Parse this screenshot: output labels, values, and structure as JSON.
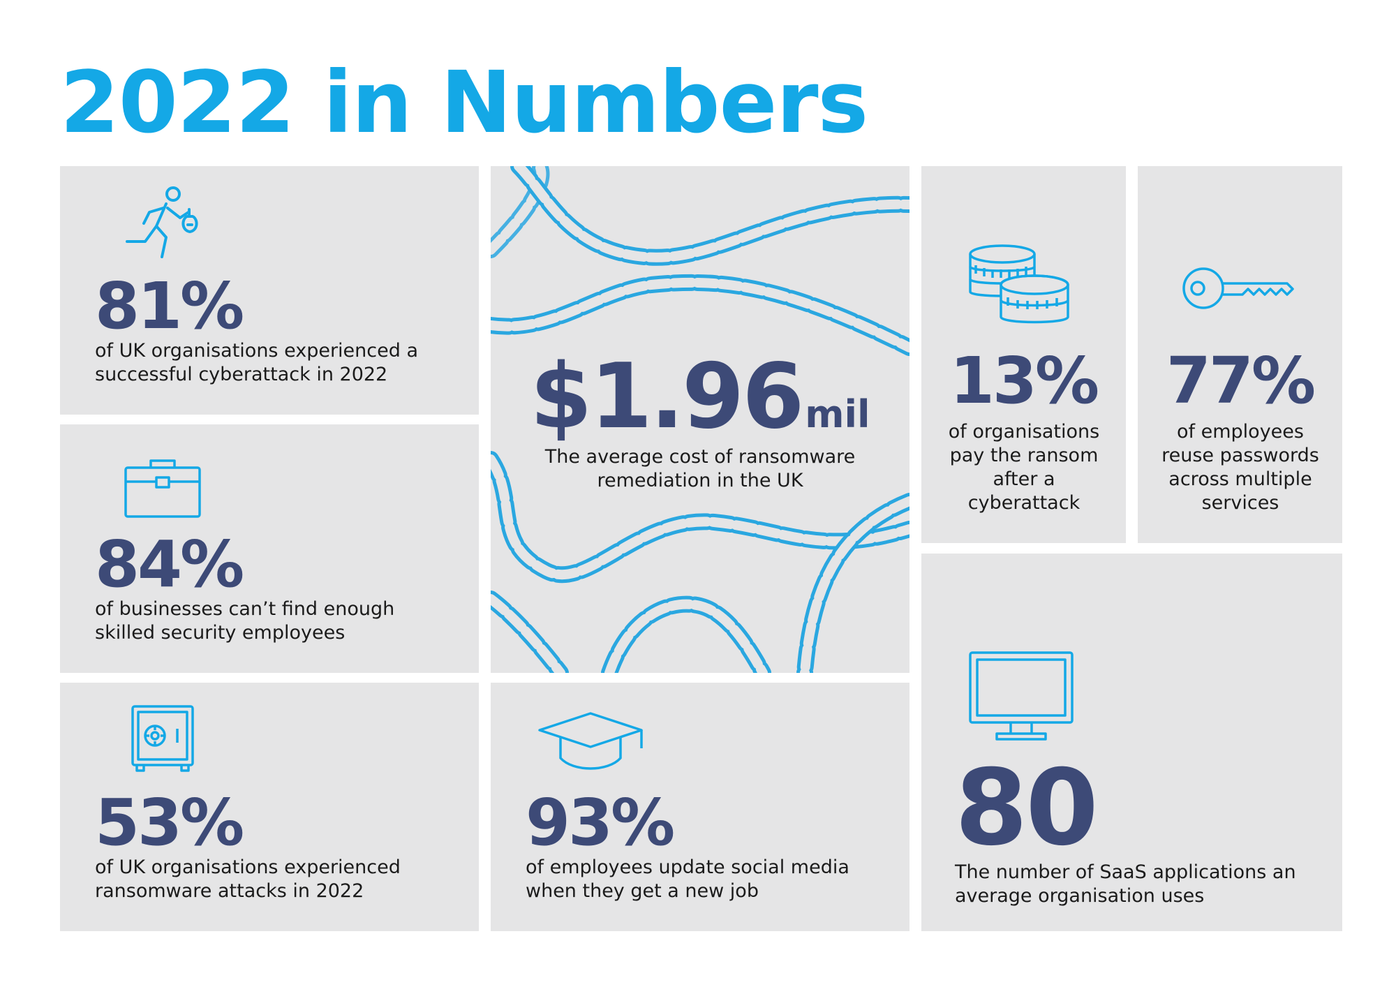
{
  "page": {
    "title": "2022 in Numbers"
  },
  "colors": {
    "accent": "#14a8e6",
    "stat_text": "#3d4a77",
    "card_background": "#e5e5e6",
    "body_text": "#1b1b1b"
  },
  "stats": {
    "cyberattack": {
      "value": "81%",
      "description": "of UK organisations experienced a successful cyberattack in 2022",
      "icon": "running-thief-icon"
    },
    "skills": {
      "value": "84%",
      "description": "of businesses can’t find enough skilled security employees",
      "icon": "briefcase-icon"
    },
    "ransomware": {
      "value": "53%",
      "description": "of UK organisations experienced ransomware attacks in 2022",
      "icon": "safe-icon"
    },
    "remediation": {
      "value": "$1.96",
      "unit": "mil",
      "description": "The average cost of ransomware remediation in the UK",
      "icon": "chains-icon"
    },
    "social_media": {
      "value": "93%",
      "description": "of employees update social media when they get a new job",
      "icon": "graduation-cap-icon"
    },
    "ransom_paid": {
      "value": "13%",
      "description": "of organisations pay the ransom after a cyberattack",
      "icon": "coin-stacks-icon"
    },
    "password_reuse": {
      "value": "77%",
      "description": "of employees reuse passwords across multiple services",
      "icon": "key-icon"
    },
    "saas": {
      "value": "80",
      "description": "The number of SaaS applications an average organisation uses",
      "icon": "monitor-icon"
    }
  }
}
